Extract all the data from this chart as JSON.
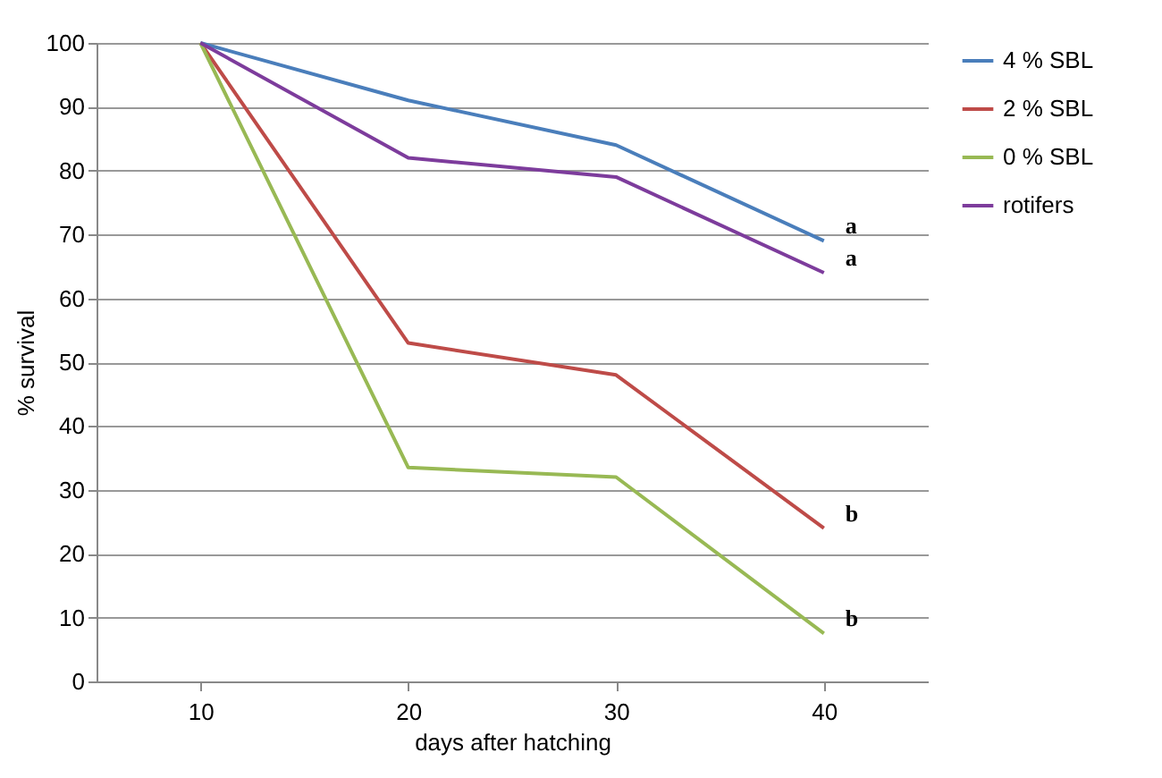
{
  "chart_data": {
    "type": "line",
    "xlabel": "days after hatching",
    "ylabel": "% survival",
    "categories": [
      "10",
      "20",
      "30",
      "40"
    ],
    "series": [
      {
        "name": "4 % SBL",
        "color": "#4a7ebb",
        "values": [
          100,
          91,
          84,
          69
        ]
      },
      {
        "name": "2 % SBL",
        "color": "#be4b48",
        "values": [
          100,
          53,
          48,
          24
        ]
      },
      {
        "name": "0 % SBL",
        "color": "#98b954",
        "values": [
          100,
          33.5,
          32,
          7.5
        ]
      },
      {
        "name": "rotifers",
        "color": "#7d3c9c",
        "values": [
          100,
          82,
          79,
          64
        ]
      }
    ],
    "annotations": [
      {
        "text": "a",
        "x": "40",
        "y": 69
      },
      {
        "text": "a",
        "x": "40",
        "y": 64
      },
      {
        "text": "b",
        "x": "40",
        "y": 24
      },
      {
        "text": "b",
        "x": "40",
        "y": 7.5
      }
    ],
    "ylim": [
      0,
      100
    ],
    "yticks": [
      0,
      10,
      20,
      30,
      40,
      50,
      60,
      70,
      80,
      90,
      100
    ],
    "grid": "y",
    "legend": "right",
    "marker": "none",
    "line_style": "solid"
  }
}
